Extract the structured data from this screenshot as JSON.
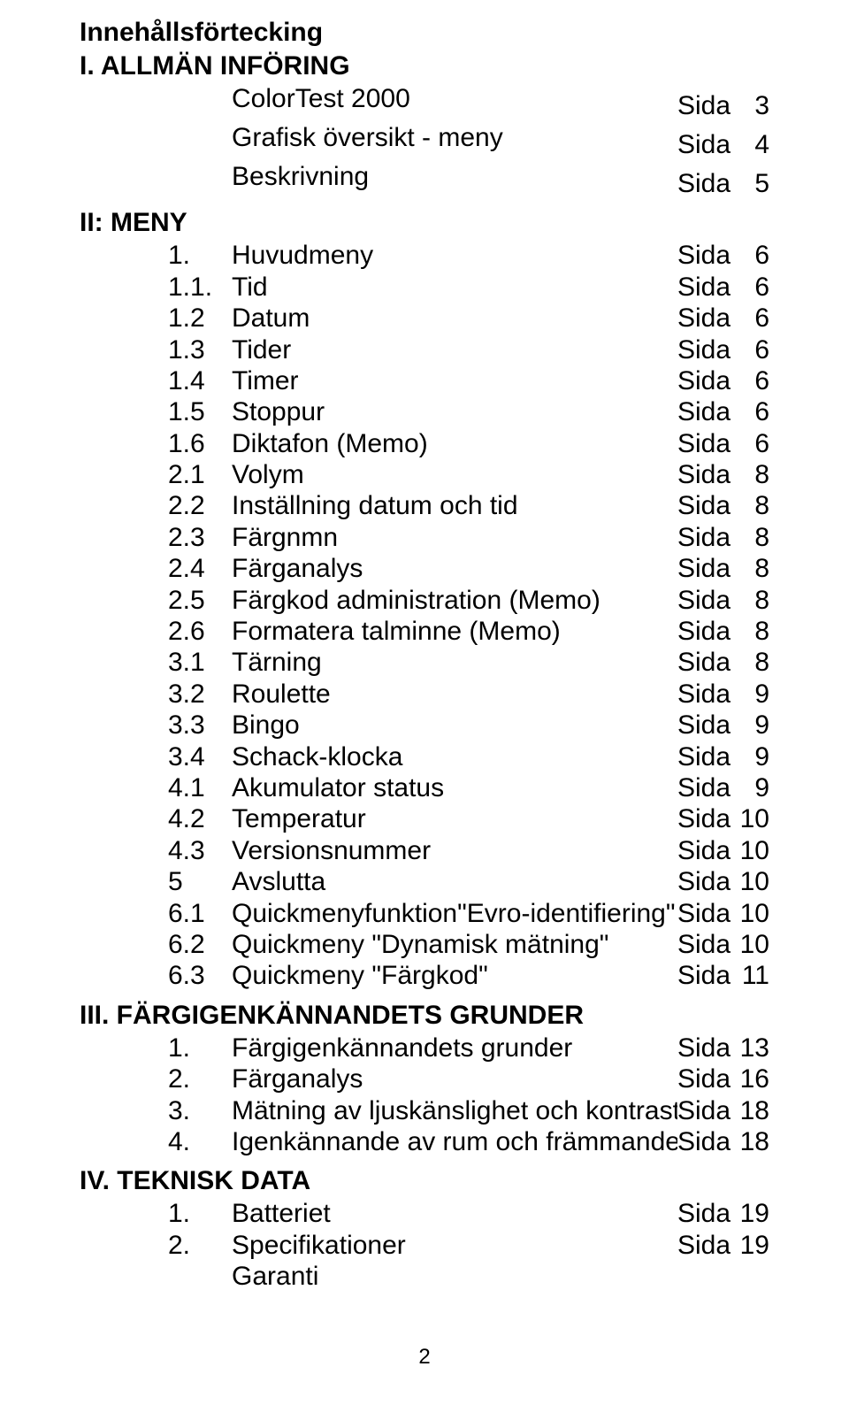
{
  "page_title": "Innehållsförtecking",
  "sida_word": "Sida",
  "footer_page": "2",
  "sections": [
    {
      "heading": "I. ALLMÄN INFÖRING",
      "items": [
        {
          "num": "",
          "label": "ColorTest 2000",
          "page": "3"
        },
        {
          "num": "",
          "label": "Grafisk översikt - meny",
          "page": "4"
        },
        {
          "num": "",
          "label": "Beskrivning",
          "page": "5"
        }
      ]
    },
    {
      "heading": "II: MENY",
      "items": [
        {
          "num": "1.",
          "label": "Huvudmeny",
          "page": "6"
        },
        {
          "num": "1.1.",
          "label": "Tid",
          "page": "6"
        },
        {
          "num": "1.2",
          "label": "Datum",
          "page": "6"
        },
        {
          "num": "1.3",
          "label": "Tider",
          "page": "6"
        },
        {
          "num": "1.4",
          "label": "Timer",
          "page": "6"
        },
        {
          "num": "1.5",
          "label": "Stoppur",
          "page": "6"
        },
        {
          "num": "1.6",
          "label": "Diktafon (Memo)",
          "page": "6"
        },
        {
          "num": "2.1",
          "label": "Volym",
          "page": "8"
        },
        {
          "num": "2.2",
          "label": "Inställning datum och tid",
          "page": "8"
        },
        {
          "num": "2.3",
          "label": "Färgnmn",
          "page": "8"
        },
        {
          "num": "2.4",
          "label": "Färganalys",
          "page": "8"
        },
        {
          "num": "2.5",
          "label": "Färgkod administration (Memo)",
          "page": "8"
        },
        {
          "num": "2.6",
          "label": "Formatera talminne (Memo)",
          "page": "8"
        },
        {
          "num": "3.1",
          "label": "Tärning",
          "page": "8"
        },
        {
          "num": "3.2",
          "label": "Roulette",
          "page": "9"
        },
        {
          "num": "3.3",
          "label": "Bingo",
          "page": "9"
        },
        {
          "num": "3.4",
          "label": "Schack-klocka",
          "page": "9"
        },
        {
          "num": "4.1",
          "label": "Akumulator status",
          "page": "9"
        },
        {
          "num": "4.2",
          "label": "Temperatur",
          "page": "10"
        },
        {
          "num": "4.3",
          "label": "Versionsnummer",
          "page": "10"
        },
        {
          "num": "5",
          "label": "Avslutta",
          "page": "10"
        },
        {
          "num": "6.1",
          "label": "Quickmenyfunktion\"Evro-identifiering\"",
          "page": "10"
        },
        {
          "num": "6.2",
          "label": "Quickmeny \"Dynamisk mätning\"",
          "page": "10"
        },
        {
          "num": "6.3",
          "label": "Quickmeny \"Färgkod\"",
          "page": "11"
        }
      ]
    },
    {
      "heading": "III. FÄRGIGENKÄNNANDETS GRUNDER",
      "items": [
        {
          "num": "1.",
          "label": "Färgigenkännandets grunder",
          "page": "13"
        },
        {
          "num": "2.",
          "label": "Färganalys",
          "page": "16"
        },
        {
          "num": "3.",
          "label": "Mätning av ljuskänslighet och kontrast",
          "page": "18"
        },
        {
          "num": "4.",
          "label": "Igenkännande av rum och främmande ljus",
          "page": "18"
        }
      ]
    },
    {
      "heading": "IV. TEKNISK DATA",
      "items": [
        {
          "num": "1.",
          "label": "Batteriet",
          "page": "19"
        },
        {
          "num": "2.",
          "label": "Specifikationer",
          "page": "19"
        },
        {
          "num": "",
          "label": "Garanti",
          "page": ""
        }
      ]
    }
  ]
}
